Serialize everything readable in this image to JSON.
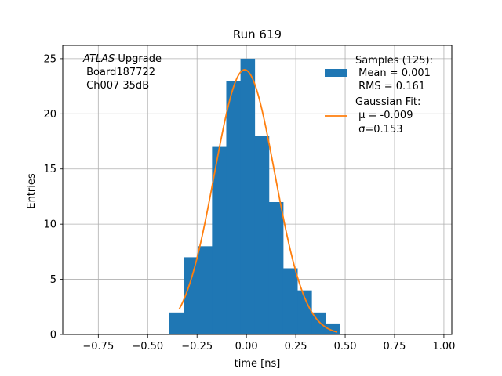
{
  "chart_data": {
    "type": "bar",
    "title": "Run 619",
    "xlabel": "time [ns]",
    "ylabel": "Entries",
    "xlim": [
      -0.93,
      1.04
    ],
    "ylim": [
      0,
      26.2
    ],
    "xticks": [
      -0.75,
      -0.5,
      -0.25,
      0.0,
      0.25,
      0.5,
      0.75,
      1.0
    ],
    "xtick_labels": [
      "−0.75",
      "−0.50",
      "−0.25",
      "0.00",
      "0.25",
      "0.50",
      "0.75",
      "1.00"
    ],
    "yticks": [
      0,
      5,
      10,
      15,
      20,
      25
    ],
    "ytick_labels": [
      "0",
      "5",
      "10",
      "15",
      "20",
      "25"
    ],
    "grid": true,
    "histogram": {
      "bin_edges": [
        -0.39,
        -0.318,
        -0.246,
        -0.174,
        -0.102,
        -0.03,
        0.042,
        0.114,
        0.186,
        0.258,
        0.33,
        0.402,
        0.474
      ],
      "counts": [
        2,
        7,
        8,
        17,
        23,
        25,
        18,
        12,
        6,
        4,
        2,
        1
      ],
      "color": "#1f77b4"
    },
    "fit": {
      "type": "gaussian",
      "mu": -0.009,
      "sigma": 0.153,
      "amplitude": 24.0,
      "x_range": [
        -0.34,
        0.46
      ],
      "color": "#ff7f0e"
    },
    "legend": {
      "placement": "top-right",
      "entries": [
        {
          "kind": "patch",
          "color": "#1f77b4",
          "lines": [
            "Samples (125):",
            " Mean = 0.001",
            " RMS = 0.161"
          ]
        },
        {
          "kind": "line",
          "color": "#ff7f0e",
          "lines": [
            "Gaussian Fit:",
            " μ = -0.009",
            " σ=0.153"
          ]
        }
      ]
    },
    "annotation": {
      "placement": "top-left",
      "italic_part": "ATLAS",
      "rest_of_first_line": " Upgrade",
      "lines": [
        " Board187722",
        " Ch007 35dB"
      ]
    }
  }
}
